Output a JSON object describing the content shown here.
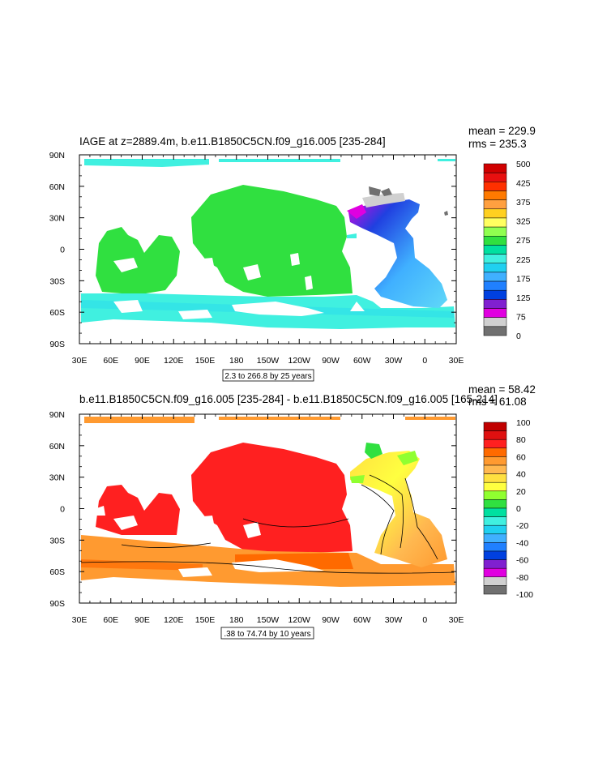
{
  "chart_data": [
    {
      "type": "heatmap",
      "title": "IAGE at z=2889.4m, b.e11.B1850C5CN.f09_g16.005 [235-284]",
      "stats": {
        "mean": "mean = 229.9",
        "rms": "rms = 235.3"
      },
      "contour_info": "2.3 to 266.8 by 25 years",
      "x_ticks": [
        "30E",
        "60E",
        "90E",
        "120E",
        "150E",
        "180",
        "150W",
        "120W",
        "90W",
        "60W",
        "30W",
        "0",
        "30E"
      ],
      "y_ticks": [
        "90N",
        "60N",
        "30N",
        "0",
        "30S",
        "60S",
        "90S"
      ],
      "colorbar": {
        "labels": [
          "500",
          "425",
          "375",
          "325",
          "275",
          "225",
          "175",
          "125",
          "75",
          "0"
        ],
        "colors": [
          "#d00000",
          "#e81010",
          "#ff3000",
          "#ff7a00",
          "#ffa040",
          "#ffd020",
          "#ffff60",
          "#90ff50",
          "#30e040",
          "#00e0a0",
          "#40f0e0",
          "#20d0f0",
          "#40b0ff",
          "#2080ff",
          "#0040e0",
          "#8020d0",
          "#e000e0",
          "#d0d0d0",
          "#707070"
        ]
      }
    },
    {
      "type": "heatmap",
      "title": "b.e11.B1850C5CN.f09_g16.005 [235-284] - b.e11.B1850C5CN.f09_g16.005 [165-214]",
      "stats": {
        "mean": "mean = 58.42",
        "rms": "rms = 61.08"
      },
      "contour_info": ".38 to 74.74 by 10 years",
      "x_ticks": [
        "30E",
        "60E",
        "90E",
        "120E",
        "150E",
        "180",
        "150W",
        "120W",
        "90W",
        "60W",
        "30W",
        "0",
        "30E"
      ],
      "y_ticks": [
        "90N",
        "60N",
        "30N",
        "0",
        "30S",
        "60S",
        "90S"
      ],
      "colorbar": {
        "labels": [
          "100",
          "80",
          "60",
          "40",
          "20",
          "0",
          "-20",
          "-40",
          "-60",
          "-80",
          "-100"
        ],
        "colors": [
          "#c00000",
          "#e01010",
          "#ff2020",
          "#ff6a00",
          "#ff9a30",
          "#ffb850",
          "#ffe040",
          "#ffff40",
          "#90ff30",
          "#30e040",
          "#00e0a0",
          "#40f0e0",
          "#20d0f0",
          "#40b0ff",
          "#2080ff",
          "#0040e0",
          "#8020d0",
          "#e000e0",
          "#d0d0d0",
          "#707070"
        ]
      }
    }
  ]
}
